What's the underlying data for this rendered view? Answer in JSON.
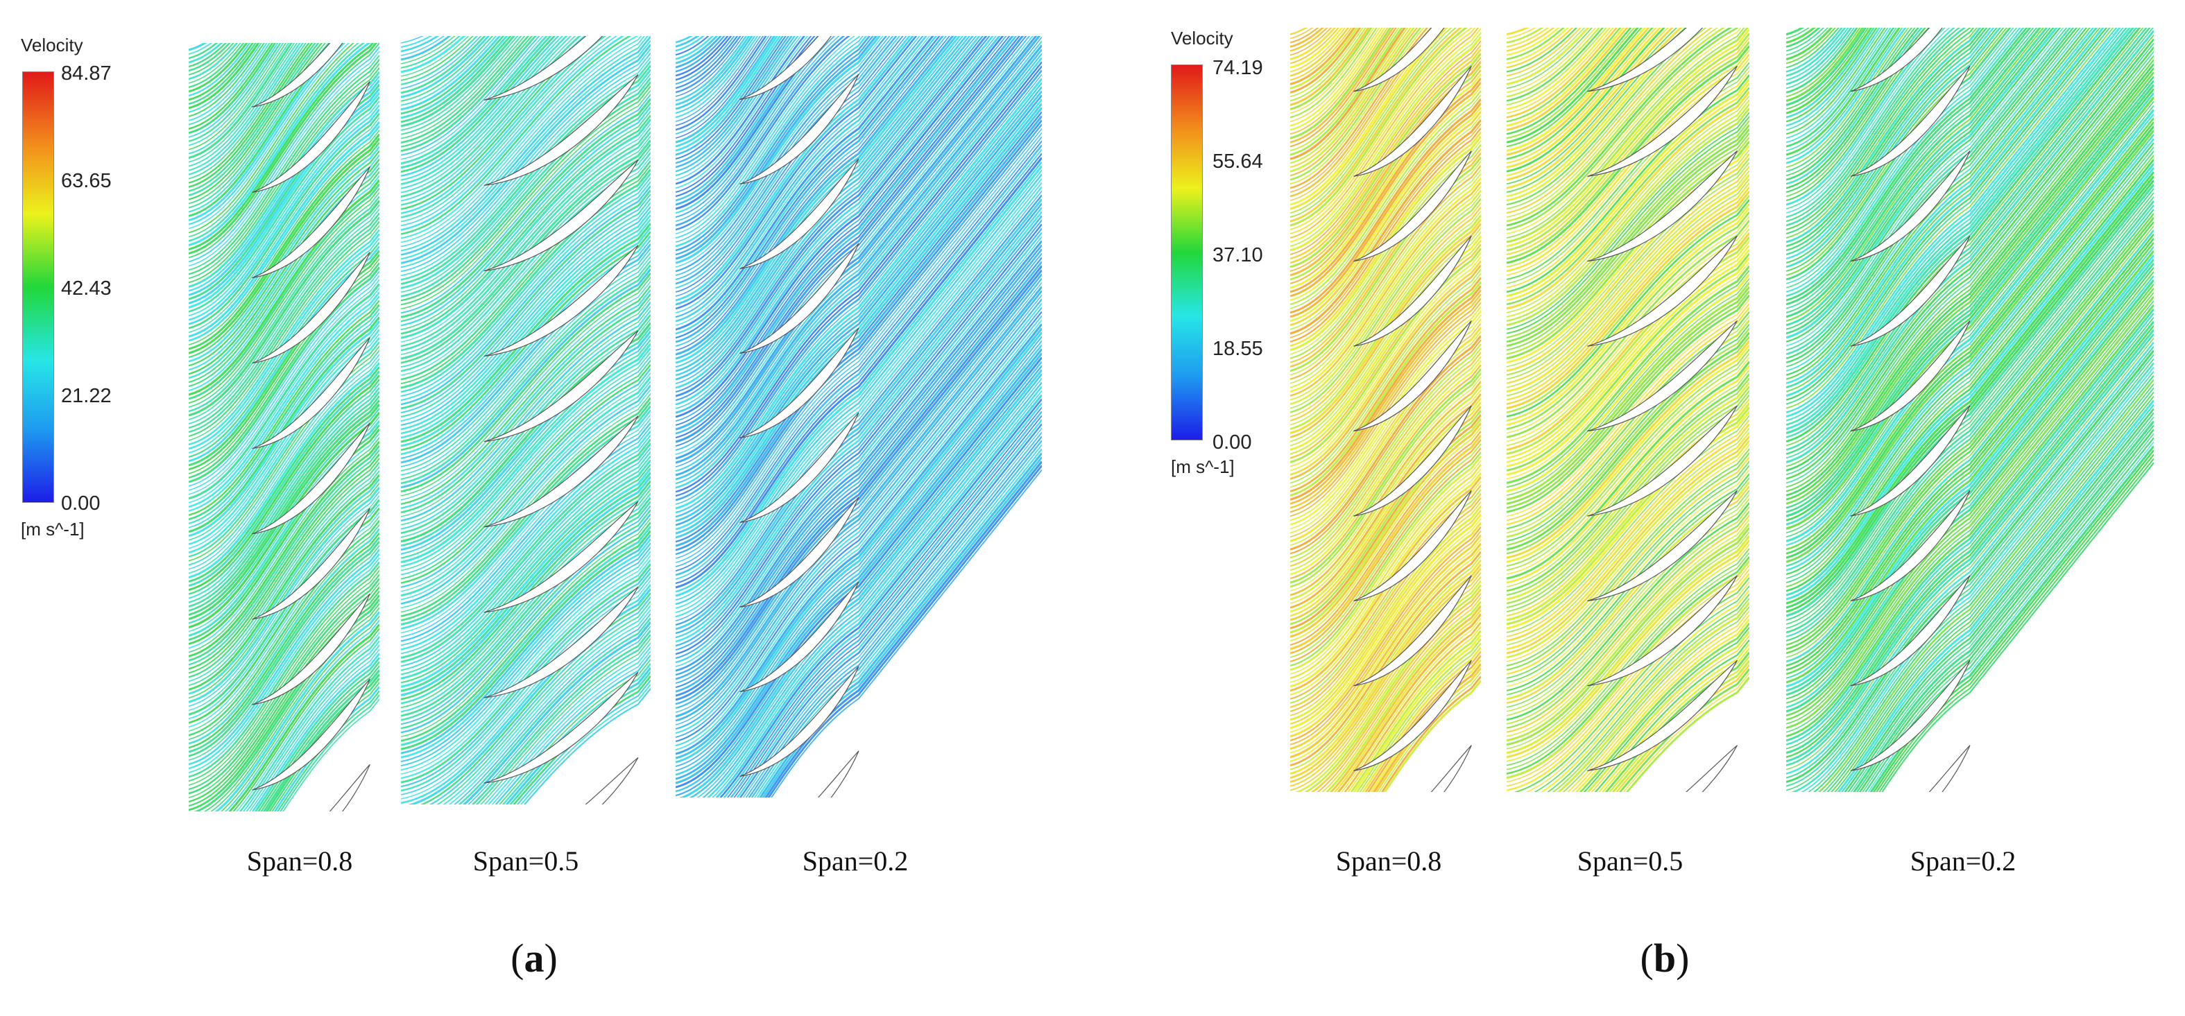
{
  "figures": [
    {
      "id": "a",
      "label": "a",
      "legend": {
        "title": "Velocity",
        "ticks": [
          "84.87",
          "63.65",
          "42.43",
          "21.22",
          "0.00"
        ],
        "unit": "[m s^-1]"
      },
      "panels": [
        {
          "label": "Span=0.8",
          "level": 0.4
        },
        {
          "label": "Span=0.5",
          "level": 0.36
        },
        {
          "label": "Span=0.2",
          "level": 0.22
        }
      ]
    },
    {
      "id": "b",
      "label": "b",
      "legend": {
        "title": "Velocity",
        "ticks": [
          "74.19",
          "55.64",
          "37.10",
          "18.55",
          "0.00"
        ],
        "unit": "[m s^-1]"
      },
      "panels": [
        {
          "label": "Span=0.8",
          "level": 0.7
        },
        {
          "label": "Span=0.5",
          "level": 0.62
        },
        {
          "label": "Span=0.2",
          "level": 0.45
        }
      ]
    }
  ],
  "colors": {
    "colormap": [
      "#1d1de8",
      "#1e9bf0",
      "#27e6e6",
      "#22d73a",
      "#ecf21c",
      "#f28d1c",
      "#e11a1a"
    ],
    "blade_outline": "#555555"
  }
}
